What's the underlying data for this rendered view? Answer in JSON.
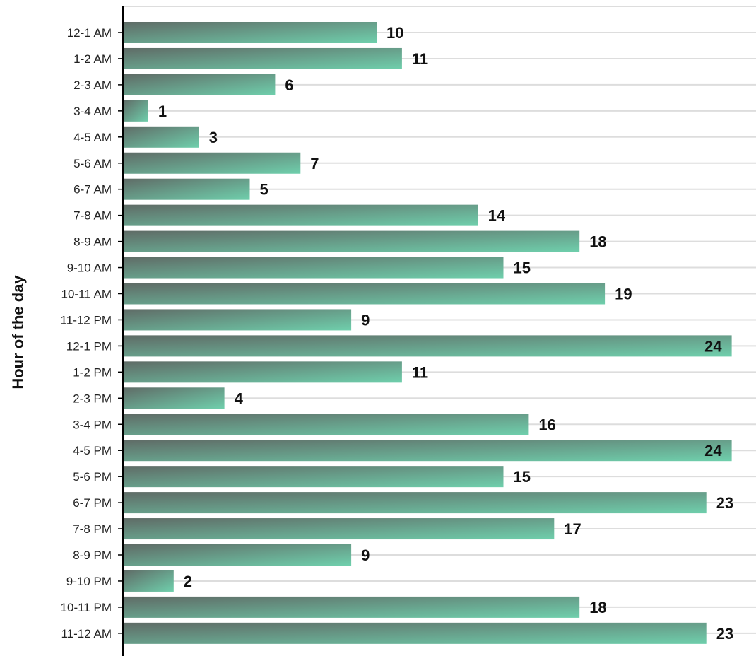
{
  "chart_data": {
    "type": "bar",
    "orientation": "horizontal",
    "ylabel": "Hour of the day",
    "xlabel": "",
    "xlim": [
      0,
      24
    ],
    "grid": true,
    "legend": "none",
    "categories": [
      "12-1 AM",
      "1-2 AM",
      "2-3 AM",
      "3-4 AM",
      "4-5 AM",
      "5-6 AM",
      "6-7 AM",
      "7-8 AM",
      "8-9 AM",
      "9-10 AM",
      "10-11 AM",
      "11-12 PM",
      "12-1 PM",
      "1-2 PM",
      "2-3 PM",
      "3-4 PM",
      "4-5 PM",
      "5-6 PM",
      "6-7 PM",
      "7-8 PM",
      "8-9 PM",
      "9-10 PM",
      "10-11 PM",
      "11-12 AM"
    ],
    "values": [
      10,
      11,
      6,
      1,
      3,
      7,
      5,
      14,
      18,
      15,
      19,
      9,
      24,
      11,
      4,
      16,
      24,
      15,
      23,
      17,
      9,
      2,
      18,
      23
    ],
    "colors": {
      "bar_gradient_start": "#5f6b66",
      "bar_gradient_end": "#6fcfac",
      "gridline": "#dddddd",
      "axis": "#000000"
    }
  }
}
